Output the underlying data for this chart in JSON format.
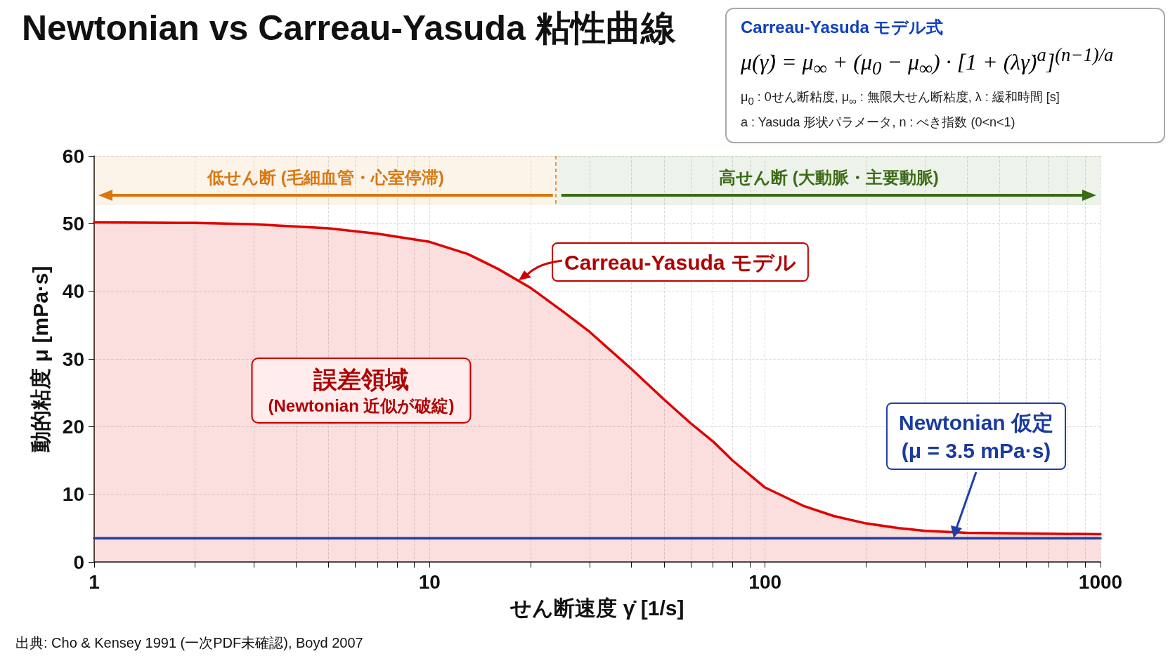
{
  "chart_data": {
    "type": "line",
    "title": "Newtonian vs Carreau-Yasuda 粘性曲線",
    "xlabel": "せん断速度 γ̇ [1/s]",
    "ylabel": "動的粘度 μ [mPa·s]",
    "log": "x",
    "xlim": [
      1,
      1000
    ],
    "xticks": [
      1,
      10,
      100,
      1000
    ],
    "ylim": [
      0,
      60
    ],
    "yticks": [
      0,
      10,
      20,
      30,
      40,
      50,
      60
    ],
    "grid": true,
    "marker": "none",
    "line_style": "solid",
    "series": [
      {
        "type": "area",
        "color": "#e00000",
        "x": [
          1,
          2,
          3,
          5,
          7,
          10,
          13,
          16,
          20,
          25,
          30,
          40,
          50,
          60,
          70,
          80,
          100,
          130,
          160,
          200,
          250,
          300,
          400,
          600,
          1000
        ],
        "values": [
          50.2,
          50.1,
          49.9,
          49.3,
          48.5,
          47.3,
          45.5,
          43.3,
          40.5,
          37,
          34,
          28.5,
          24,
          20.5,
          17.8,
          15,
          11,
          8.3,
          6.8,
          5.7,
          5,
          4.6,
          4.3,
          4.2,
          4.1
        ]
      },
      {
        "color": "#1f3f9f",
        "x": [
          1,
          1000
        ],
        "values": [
          3.5,
          3.5
        ]
      }
    ],
    "bands": [
      {
        "axis": "x",
        "from": 1,
        "to": 24,
        "label": "低せん断 (毛細血管・心室停滞)",
        "color": "#d9770f"
      },
      {
        "axis": "x",
        "from": 24,
        "to": 1000,
        "label": "高せん断 (大動脈・主要動脈)",
        "color": "#3a6b16"
      }
    ],
    "annotations": [
      "Carreau-Yasuda モデル式",
      "μ(γ̇) = μ$_{∞}$ + (μ$_{0}$ − μ$_{∞}$) · [1 + (λγ̇)$^{a}$]$^{(n−1)/a}$",
      "μ$_{0}$ : 0せん断粘度, μ$_{∞}$ : 無限大せん断粘度, λ : 緩和時間 [s]",
      "a : Yasuda 形状パラメータ, n : べき指数 (0<n<1)",
      "誤差領域\n(Newtonian 近似が破綻)",
      "Carreau-Yasuda モデル",
      "Newtonian 仮定\n(μ = 3.5 mPa·s)",
      "出典: Cho & Kensey 1991 (一次PDF未確認), Boyd 2007"
    ]
  }
}
